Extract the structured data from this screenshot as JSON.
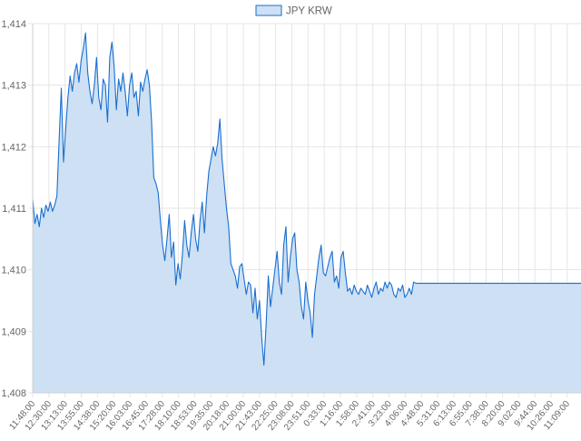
{
  "chart_data": {
    "type": "area",
    "legend": {
      "position": "top",
      "label": "JPY KRW"
    },
    "y_ticks": [
      "1,414",
      "1,413",
      "1,412",
      "1,411",
      "1,410",
      "1,409",
      "1,408"
    ],
    "y_tick_values": [
      1414,
      1413,
      1412,
      1411,
      1410,
      1409,
      1408
    ],
    "ylim": [
      1408,
      1414
    ],
    "grid": true,
    "colors": {
      "line": "#1a6fcf",
      "fill": "#cde0f4",
      "grid": "#e6e6e6",
      "axis": "#666666"
    },
    "x_labels": [
      "11:48:00",
      "12:30:00",
      "13:13:00",
      "13:55:00",
      "14:38:00",
      "15:20:00",
      "16:03:00",
      "16:45:00",
      "17:28:00",
      "18:10:00",
      "18:53:00",
      "19:35:00",
      "20:18:00",
      "21:00:00",
      "21:43:00",
      "22:25:00",
      "23:08:00",
      "23:51:00",
      "0:33:00",
      "1:16:00",
      "1:58:00",
      "2:41:00",
      "3:23:00",
      "4:06:00",
      "4:48:00",
      "5:31:00",
      "6:13:00",
      "6:55:00",
      "7:38:00",
      "8:20:00",
      "9:02:00",
      "9:44:00",
      "10:26:00",
      "11:09:00"
    ],
    "series": [
      {
        "values": [
          1411.15,
          1410.75,
          1410.9,
          1410.7,
          1411.0,
          1410.85,
          1411.05,
          1410.95,
          1411.1,
          1410.95,
          1411.05,
          1411.2,
          1412.1,
          1412.95,
          1411.75,
          1412.3,
          1412.8,
          1413.15,
          1412.9,
          1413.2,
          1413.35,
          1413.05,
          1413.4,
          1413.6,
          1413.85,
          1413.2,
          1412.9,
          1412.7,
          1413.0,
          1413.45,
          1412.8,
          1412.6,
          1413.1,
          1413.0,
          1412.4,
          1413.45,
          1413.7,
          1413.3,
          1412.6,
          1413.1,
          1412.9,
          1413.2,
          1412.9,
          1412.5,
          1413.0,
          1413.2,
          1412.8,
          1412.9,
          1412.5,
          1413.05,
          1412.9,
          1413.1,
          1413.25,
          1413.0,
          1412.4,
          1411.5,
          1411.4,
          1411.25,
          1410.8,
          1410.4,
          1410.15,
          1410.5,
          1410.9,
          1410.2,
          1410.45,
          1409.75,
          1410.1,
          1409.85,
          1410.25,
          1410.8,
          1410.4,
          1410.2,
          1410.6,
          1410.9,
          1410.5,
          1410.3,
          1410.8,
          1411.1,
          1410.6,
          1411.2,
          1411.6,
          1411.8,
          1412.0,
          1411.85,
          1412.05,
          1412.45,
          1411.8,
          1411.4,
          1411.0,
          1410.7,
          1410.1,
          1410.0,
          1409.9,
          1409.7,
          1410.05,
          1410.1,
          1409.85,
          1409.6,
          1409.8,
          1409.75,
          1409.3,
          1409.7,
          1409.2,
          1409.5,
          1408.9,
          1408.45,
          1409.1,
          1409.9,
          1409.4,
          1409.7,
          1410.0,
          1410.3,
          1409.8,
          1409.6,
          1410.4,
          1410.7,
          1409.8,
          1410.2,
          1410.5,
          1410.6,
          1410.0,
          1409.8,
          1409.4,
          1409.2,
          1409.8,
          1409.5,
          1409.3,
          1408.9,
          1409.6,
          1409.9,
          1410.2,
          1410.4,
          1409.95,
          1409.9,
          1410.05,
          1410.2,
          1410.3,
          1409.8,
          1409.9,
          1409.7,
          1410.2,
          1410.3,
          1409.95,
          1409.65,
          1409.7,
          1409.6,
          1409.75,
          1409.65,
          1409.6,
          1409.7,
          1409.65,
          1409.6,
          1409.75,
          1409.65,
          1409.55,
          1409.7,
          1409.8,
          1409.6,
          1409.7,
          1409.65,
          1409.8,
          1409.7,
          1409.8,
          1409.75,
          1409.6,
          1409.55,
          1409.7,
          1409.65,
          1409.75,
          1409.55,
          1409.6,
          1409.7,
          1409.6,
          1409.8,
          1409.78,
          1409.78,
          1409.78,
          1409.78,
          1409.78,
          1409.78,
          1409.78,
          1409.78,
          1409.78,
          1409.78,
          1409.78,
          1409.78,
          1409.78,
          1409.78,
          1409.78,
          1409.78,
          1409.78,
          1409.78,
          1409.78,
          1409.78,
          1409.78,
          1409.78,
          1409.78,
          1409.78,
          1409.78,
          1409.78,
          1409.78,
          1409.78,
          1409.78,
          1409.78,
          1409.78,
          1409.78,
          1409.78,
          1409.78,
          1409.78,
          1409.78,
          1409.78,
          1409.78,
          1409.78,
          1409.78,
          1409.78,
          1409.78,
          1409.78,
          1409.78,
          1409.78,
          1409.78,
          1409.78,
          1409.78,
          1409.78,
          1409.78,
          1409.78,
          1409.78,
          1409.78,
          1409.78,
          1409.78,
          1409.78,
          1409.78,
          1409.78,
          1409.78,
          1409.78,
          1409.78,
          1409.78,
          1409.78,
          1409.78,
          1409.78,
          1409.78,
          1409.78,
          1409.78,
          1409.78,
          1409.78,
          1409.78,
          1409.78,
          1409.78,
          1409.78,
          1409.78,
          1409.78
        ]
      }
    ]
  }
}
